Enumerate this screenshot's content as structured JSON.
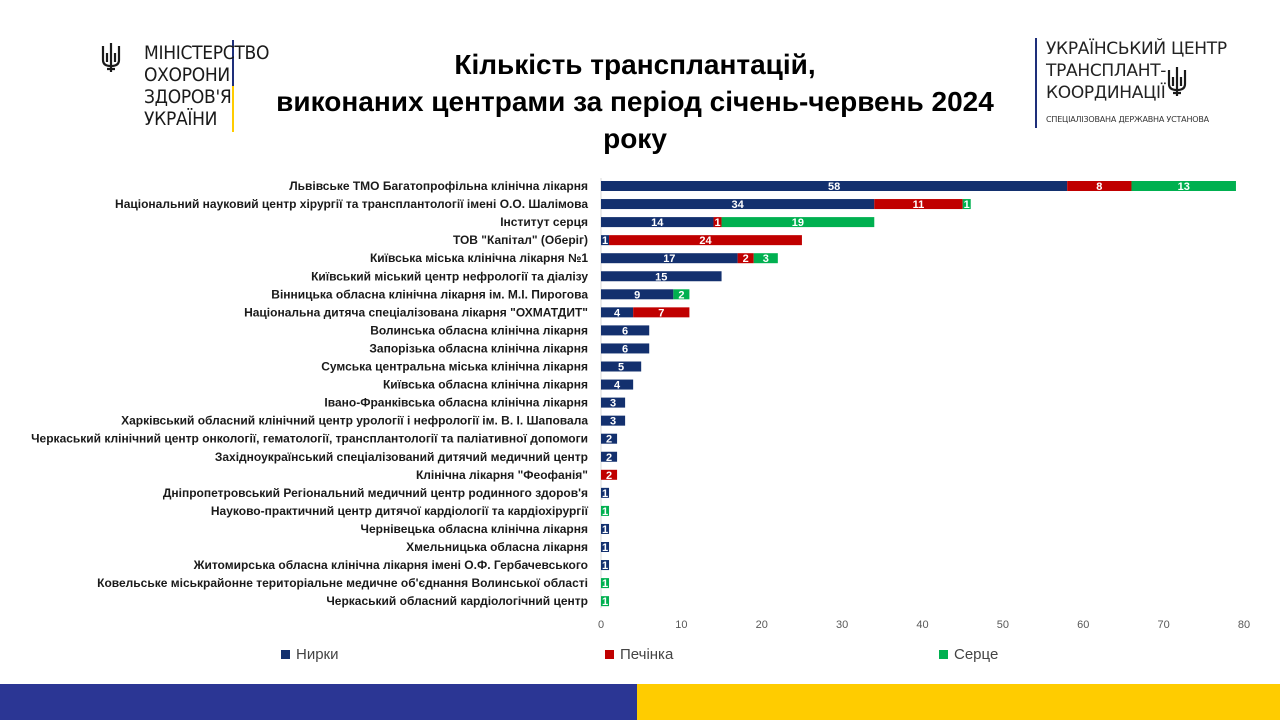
{
  "title_lines": [
    "Кількість трансплантацій,",
    "виконаних центрами за період січень-червень 2024",
    "року"
  ],
  "logo_left": {
    "lines": [
      "МІНІСТЕРСТВО",
      "ОХОРОНИ",
      "ЗДОРОВ'Я",
      "УКРАЇНИ"
    ],
    "icon": "trident-icon"
  },
  "logo_right": {
    "lines": [
      "УКРАЇНСЬКИЙ ЦЕНТР",
      "ТРАНСПЛАНТ-",
      "КООРДИНАЦІЇ"
    ],
    "subtitle": "СПЕЦІАЛІЗОВАНА ДЕРЖАВНА УСТАНОВА",
    "icon": "trident-icon"
  },
  "colors": {
    "kidneys": "#13306e",
    "liver": "#c00000",
    "heart": "#00b050",
    "band_blue": "#2b3694",
    "band_yellow": "#ffcc00",
    "navy": "#1e2f7a"
  },
  "chart_data": {
    "type": "bar",
    "orientation": "horizontal",
    "stacked": true,
    "xlim": [
      0,
      80
    ],
    "xticks": [
      0,
      10,
      20,
      30,
      40,
      50,
      60,
      70,
      80
    ],
    "grid": false,
    "legend_position": "bottom",
    "categories": [
      "Львівське ТМО Багатопрофільна клінічна лікарня",
      "Національний науковий центр хірургії та трансплантології імені О.О. Шалімова",
      "Інститут серця",
      "ТОВ \"Капітал\" (Оберіг)",
      "Київська міська клінічна лікарня №1",
      "Київський міський центр нефрології та діалізу",
      "Вінницька обласна клінічна лікарня ім. М.І. Пирогова",
      "Національна дитяча спеціалізована лікарня \"ОХМАТДИТ\"",
      "Волинська обласна клінічна лікарня",
      "Запорізька обласна клінічна лікарня",
      "Сумська центральна міська клінічна лікарня",
      "Київська обласна клінічна лікарня",
      "Івано-Франківська обласна клінічна лікарня",
      "Харківський обласний клінічний центр урології і нефрології ім. В. І. Шаповала",
      "Черкаський клінічний центр онкології, гематології, трансплантології та паліативної допомоги",
      "Західноукраїнський спеціалізований дитячий медичний центр",
      "Клінічна лікарня \"Феофанія\"",
      "Дніпропетровський Регіональний медичний центр родинного здоров'я",
      "Науково-практичний центр дитячої кардіології та кардіохірургії",
      "Чернівецька обласна клінічна лікарня",
      "Хмельницька обласна лікарня",
      "Житомирська обласна клінічна лікарня імені О.Ф. Гербачевського",
      "Ковельське міськрайонне територіальне медичне об'єднання Волинської області",
      "Черкаський обласний кардіологічний центр"
    ],
    "series": [
      {
        "name": "Нирки",
        "color": "#13306e",
        "values": [
          58,
          34,
          14,
          1,
          17,
          15,
          9,
          4,
          6,
          6,
          5,
          4,
          3,
          3,
          2,
          2,
          0,
          1,
          0,
          1,
          1,
          1,
          0,
          0
        ]
      },
      {
        "name": "Печінка",
        "color": "#c00000",
        "values": [
          8,
          11,
          1,
          24,
          2,
          0,
          0,
          7,
          0,
          0,
          0,
          0,
          0,
          0,
          0,
          0,
          2,
          0,
          0,
          0,
          0,
          0,
          0,
          0
        ]
      },
      {
        "name": "Серце",
        "color": "#00b050",
        "values": [
          13,
          1,
          19,
          0,
          3,
          0,
          2,
          0,
          0,
          0,
          0,
          0,
          0,
          0,
          0,
          0,
          0,
          0,
          1,
          0,
          0,
          0,
          1,
          1
        ]
      }
    ]
  }
}
